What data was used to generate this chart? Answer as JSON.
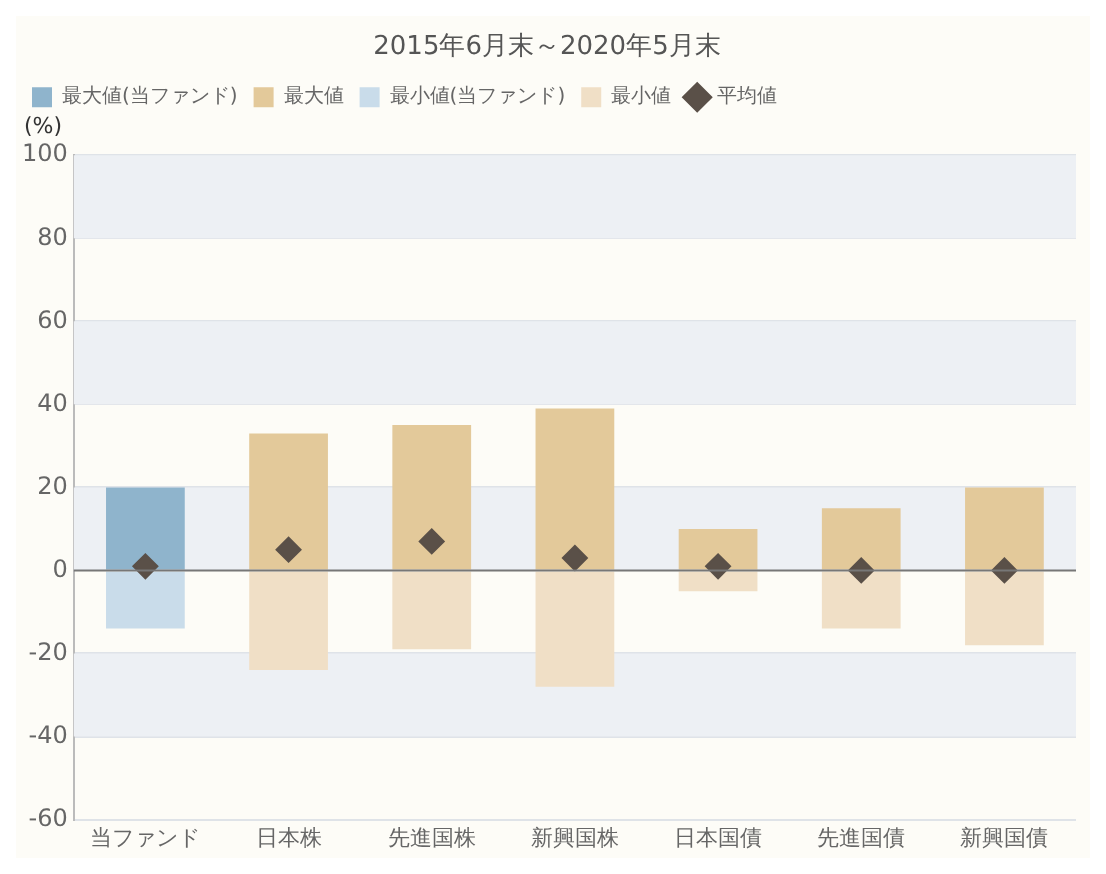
{
  "chart_data": {
    "type": "bar",
    "title": "2015年6月末～2020年5月末",
    "ylabel": "(%)",
    "stacked": true,
    "categories": [
      "当ファンド",
      "日本株",
      "先進国株",
      "新興国株",
      "日本国債",
      "先進国債",
      "新興国債"
    ],
    "series": [
      {
        "name": "最大値(当ファンド)",
        "color": "#8fb4cc",
        "values": [
          20,
          null,
          null,
          null,
          null,
          null,
          null
        ]
      },
      {
        "name": "最大値",
        "color": "#e3c99a",
        "values": [
          null,
          33,
          35,
          39,
          10,
          15,
          20
        ]
      },
      {
        "name": "最小値(当ファンド)",
        "color": "#c9dcea",
        "values": [
          -14,
          null,
          null,
          null,
          null,
          null,
          null
        ]
      },
      {
        "name": "最小値",
        "color": "#f0dfc6",
        "values": [
          null,
          -24,
          -19,
          -28,
          -5,
          -14,
          -18
        ]
      },
      {
        "name": "平均値",
        "type": "scatter",
        "color": "#5a5048",
        "marker": "diamond",
        "x": [
          "当ファンド",
          "日本株",
          "先進国株",
          "新興国株",
          "日本国債",
          "先進国債",
          "新興国債"
        ],
        "values": [
          1,
          5,
          7,
          3,
          1,
          0,
          0
        ]
      }
    ],
    "ylim": [
      -60,
      100
    ],
    "yticks": [
      -60,
      -40,
      -20,
      0,
      20,
      40,
      60,
      80,
      100
    ],
    "grid": "y",
    "legend": "top",
    "ref_lines": [
      {
        "axis": "y",
        "value": 0,
        "color": "#777777"
      }
    ]
  }
}
